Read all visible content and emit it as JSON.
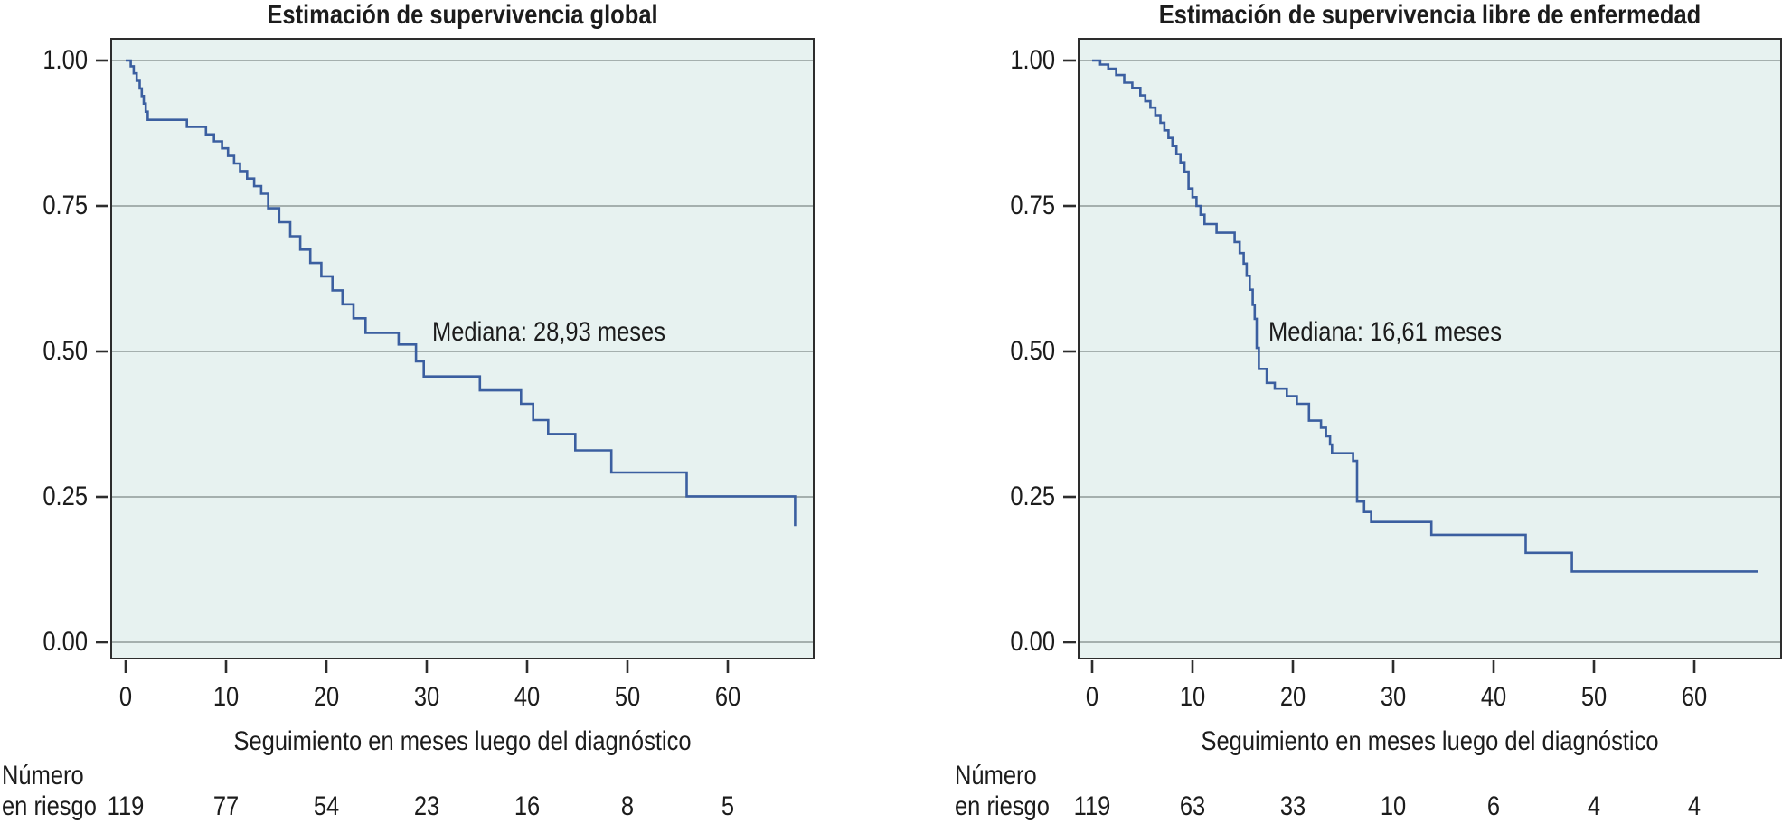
{
  "figure": {
    "xlabel": "Seguimiento en meses luego del diagnóstico",
    "risk_label": {
      "line1": "Número",
      "line2": "en riesgo"
    },
    "y_tick_labels": [
      "1.00",
      "0.75",
      "0.50",
      "0.25",
      "0.00"
    ],
    "y_tick_values": [
      1,
      0.75,
      0.5,
      0.25,
      0
    ],
    "x_tick_labels": [
      "0",
      "10",
      "20",
      "30",
      "40",
      "50",
      "60"
    ],
    "x_tick_values": [
      0,
      10,
      20,
      30,
      40,
      50,
      60
    ],
    "colors": {
      "page_bg": "#ffffff",
      "plot_bg": "#e7f2f0",
      "grid": "#8f9a98",
      "axis": "#2d2d2d",
      "curve": "#3b5fa0",
      "text": "#1c1c1c"
    }
  },
  "chart_data": [
    {
      "type": "line",
      "variant": "kaplan-meier-step",
      "title": "Estimación de supervivencia global",
      "median_label": "Mediana: 28,93 meses",
      "median_months": 28.93,
      "xlabel": "Seguimiento en meses luego del diagnóstico",
      "ylabel": "",
      "xlim": [
        0,
        68.5
      ],
      "ylim": [
        0,
        1
      ],
      "x_ticks": [
        0,
        10,
        20,
        30,
        40,
        50,
        60
      ],
      "y_ticks": [
        0,
        0.25,
        0.5,
        0.75,
        1
      ],
      "grid": "horizontal",
      "legend": "none",
      "number_at_risk_times": [
        0,
        10,
        20,
        30,
        40,
        50,
        60
      ],
      "number_at_risk": [
        119,
        77,
        54,
        23,
        16,
        8,
        5
      ],
      "end_month": 66.7,
      "steps": [
        [
          0,
          1.0
        ],
        [
          0.5,
          0.99
        ],
        [
          0.8,
          0.978
        ],
        [
          1.1,
          0.965
        ],
        [
          1.4,
          0.952
        ],
        [
          1.6,
          0.939
        ],
        [
          1.8,
          0.926
        ],
        [
          2.0,
          0.912
        ],
        [
          2.2,
          0.898
        ],
        [
          6.1,
          0.886
        ],
        [
          8.0,
          0.873
        ],
        [
          8.8,
          0.861
        ],
        [
          9.6,
          0.849
        ],
        [
          10.2,
          0.836
        ],
        [
          10.8,
          0.823
        ],
        [
          11.4,
          0.81
        ],
        [
          12.1,
          0.797
        ],
        [
          12.8,
          0.784
        ],
        [
          13.5,
          0.771
        ],
        [
          14.2,
          0.746
        ],
        [
          15.3,
          0.722
        ],
        [
          16.4,
          0.698
        ],
        [
          17.4,
          0.675
        ],
        [
          18.4,
          0.652
        ],
        [
          19.5,
          0.629
        ],
        [
          20.6,
          0.605
        ],
        [
          21.6,
          0.581
        ],
        [
          22.7,
          0.557
        ],
        [
          23.9,
          0.532
        ],
        [
          27.2,
          0.512
        ],
        [
          28.93,
          0.483
        ],
        [
          29.7,
          0.457
        ],
        [
          35.3,
          0.433
        ],
        [
          39.4,
          0.41
        ],
        [
          40.6,
          0.382
        ],
        [
          42.1,
          0.358
        ],
        [
          44.8,
          0.33
        ],
        [
          48.4,
          0.292
        ],
        [
          55.9,
          0.251
        ],
        [
          66.7,
          0.2
        ]
      ]
    },
    {
      "type": "line",
      "variant": "kaplan-meier-step",
      "title": "Estimación de supervivencia libre de enfermedad",
      "median_label": "Mediana: 16,61 meses",
      "median_months": 16.61,
      "xlabel": "Seguimiento en meses luego del diagnóstico",
      "ylabel": "",
      "xlim": [
        0,
        68.5
      ],
      "ylim": [
        0,
        1
      ],
      "x_ticks": [
        0,
        10,
        20,
        30,
        40,
        50,
        60
      ],
      "y_ticks": [
        0,
        0.25,
        0.5,
        0.75,
        1
      ],
      "grid": "horizontal",
      "legend": "none",
      "number_at_risk_times": [
        0,
        10,
        20,
        30,
        40,
        50,
        60
      ],
      "number_at_risk": [
        119,
        63,
        33,
        10,
        6,
        4,
        4
      ],
      "end_month": 66.4,
      "steps": [
        [
          0,
          1.0
        ],
        [
          0.8,
          0.993
        ],
        [
          1.6,
          0.986
        ],
        [
          2.4,
          0.975
        ],
        [
          3.2,
          0.962
        ],
        [
          4.0,
          0.953
        ],
        [
          4.8,
          0.94
        ],
        [
          5.3,
          0.93
        ],
        [
          5.8,
          0.919
        ],
        [
          6.3,
          0.906
        ],
        [
          6.8,
          0.893
        ],
        [
          7.2,
          0.88
        ],
        [
          7.6,
          0.867
        ],
        [
          8.0,
          0.853
        ],
        [
          8.4,
          0.839
        ],
        [
          8.8,
          0.825
        ],
        [
          9.2,
          0.809
        ],
        [
          9.6,
          0.78
        ],
        [
          10.0,
          0.765
        ],
        [
          10.4,
          0.75
        ],
        [
          10.8,
          0.735
        ],
        [
          11.2,
          0.719
        ],
        [
          12.4,
          0.704
        ],
        [
          14.2,
          0.688
        ],
        [
          14.7,
          0.669
        ],
        [
          15.1,
          0.651
        ],
        [
          15.4,
          0.63
        ],
        [
          15.7,
          0.606
        ],
        [
          16.0,
          0.58
        ],
        [
          16.2,
          0.556
        ],
        [
          16.4,
          0.506
        ],
        [
          16.61,
          0.47
        ],
        [
          17.4,
          0.446
        ],
        [
          18.2,
          0.436
        ],
        [
          19.4,
          0.423
        ],
        [
          20.4,
          0.41
        ],
        [
          21.6,
          0.381
        ],
        [
          22.8,
          0.369
        ],
        [
          23.3,
          0.354
        ],
        [
          23.7,
          0.34
        ],
        [
          23.9,
          0.325
        ],
        [
          26.0,
          0.312
        ],
        [
          26.4,
          0.242
        ],
        [
          27.1,
          0.224
        ],
        [
          27.8,
          0.207
        ],
        [
          33.8,
          0.185
        ],
        [
          43.2,
          0.154
        ],
        [
          47.8,
          0.122
        ]
      ]
    }
  ]
}
